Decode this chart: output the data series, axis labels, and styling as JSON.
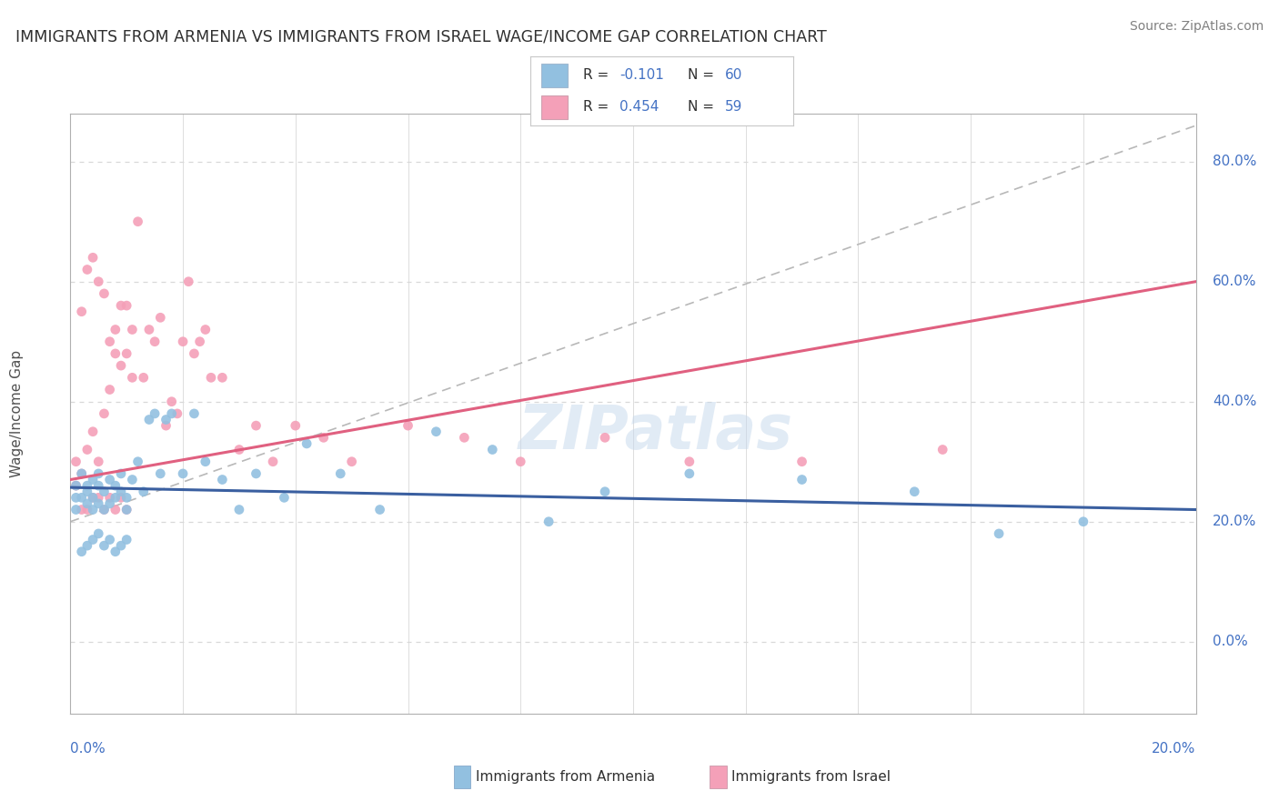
{
  "title": "IMMIGRANTS FROM ARMENIA VS IMMIGRANTS FROM ISRAEL WAGE/INCOME GAP CORRELATION CHART",
  "source": "Source: ZipAtlas.com",
  "ylabel": "Wage/Income Gap",
  "armenia_color": "#92c0e0",
  "israel_color": "#f4a0b8",
  "armenia_line_color": "#3a5fa0",
  "israel_line_color": "#e06080",
  "ref_line_color": "#b8b8b8",
  "title_color": "#303030",
  "source_color": "#808080",
  "axis_label_color": "#4472c4",
  "grid_color": "#d8d8d8",
  "background_color": "#ffffff",
  "xmin": 0.0,
  "xmax": 0.2,
  "ymin": -0.12,
  "ymax": 0.88,
  "y_tick_positions": [
    0.0,
    0.2,
    0.4,
    0.6,
    0.8
  ],
  "y_tick_labels": [
    "0.0%",
    "20.0%",
    "40.0%",
    "60.0%",
    "80.0%"
  ],
  "armenia_R": -0.101,
  "armenia_N": 60,
  "israel_R": 0.454,
  "israel_N": 59,
  "armenia_scatter_x": [
    0.001,
    0.001,
    0.002,
    0.002,
    0.003,
    0.003,
    0.003,
    0.004,
    0.004,
    0.004,
    0.005,
    0.005,
    0.005,
    0.006,
    0.006,
    0.007,
    0.007,
    0.008,
    0.008,
    0.009,
    0.009,
    0.01,
    0.01,
    0.011,
    0.012,
    0.013,
    0.014,
    0.015,
    0.016,
    0.017,
    0.018,
    0.02,
    0.022,
    0.024,
    0.027,
    0.03,
    0.033,
    0.038,
    0.042,
    0.048,
    0.055,
    0.065,
    0.075,
    0.085,
    0.095,
    0.11,
    0.13,
    0.15,
    0.165,
    0.18,
    0.001,
    0.002,
    0.003,
    0.004,
    0.005,
    0.006,
    0.007,
    0.008,
    0.009,
    0.01
  ],
  "armenia_scatter_y": [
    0.22,
    0.26,
    0.24,
    0.28,
    0.23,
    0.26,
    0.25,
    0.27,
    0.22,
    0.24,
    0.28,
    0.23,
    0.26,
    0.25,
    0.22,
    0.27,
    0.23,
    0.24,
    0.26,
    0.28,
    0.25,
    0.24,
    0.22,
    0.27,
    0.3,
    0.25,
    0.37,
    0.38,
    0.28,
    0.37,
    0.38,
    0.28,
    0.38,
    0.3,
    0.27,
    0.22,
    0.28,
    0.24,
    0.33,
    0.28,
    0.22,
    0.35,
    0.32,
    0.2,
    0.25,
    0.28,
    0.27,
    0.25,
    0.18,
    0.2,
    0.24,
    0.15,
    0.16,
    0.17,
    0.18,
    0.16,
    0.17,
    0.15,
    0.16,
    0.17
  ],
  "israel_scatter_x": [
    0.001,
    0.001,
    0.002,
    0.002,
    0.003,
    0.003,
    0.004,
    0.004,
    0.005,
    0.005,
    0.006,
    0.006,
    0.007,
    0.007,
    0.008,
    0.008,
    0.009,
    0.009,
    0.01,
    0.01,
    0.011,
    0.011,
    0.012,
    0.013,
    0.014,
    0.015,
    0.016,
    0.017,
    0.018,
    0.019,
    0.02,
    0.021,
    0.022,
    0.023,
    0.024,
    0.025,
    0.027,
    0.03,
    0.033,
    0.036,
    0.04,
    0.045,
    0.05,
    0.06,
    0.07,
    0.08,
    0.095,
    0.11,
    0.13,
    0.155,
    0.002,
    0.003,
    0.004,
    0.005,
    0.006,
    0.007,
    0.008,
    0.009,
    0.01
  ],
  "israel_scatter_y": [
    0.26,
    0.3,
    0.28,
    0.55,
    0.32,
    0.62,
    0.35,
    0.64,
    0.3,
    0.6,
    0.38,
    0.58,
    0.42,
    0.5,
    0.48,
    0.52,
    0.46,
    0.56,
    0.48,
    0.56,
    0.52,
    0.44,
    0.7,
    0.44,
    0.52,
    0.5,
    0.54,
    0.36,
    0.4,
    0.38,
    0.5,
    0.6,
    0.48,
    0.5,
    0.52,
    0.44,
    0.44,
    0.32,
    0.36,
    0.3,
    0.36,
    0.34,
    0.3,
    0.36,
    0.34,
    0.3,
    0.34,
    0.3,
    0.3,
    0.32,
    0.22,
    0.22,
    0.24,
    0.24,
    0.22,
    0.24,
    0.22,
    0.24,
    0.22
  ]
}
